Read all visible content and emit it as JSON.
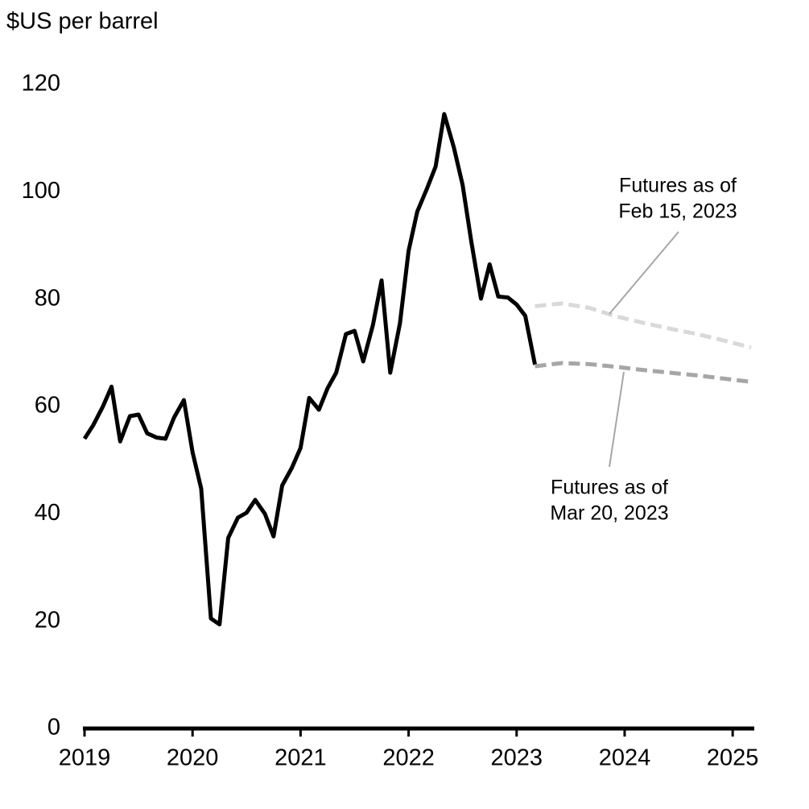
{
  "chart_data": {
    "type": "line",
    "y_axis_label": "$US per barrel",
    "xlim": [
      2019,
      2025.2
    ],
    "xticks": [
      2019,
      2020,
      2021,
      2022,
      2023,
      2024,
      2025
    ],
    "ylim": [
      0,
      120
    ],
    "yticks": [
      0,
      20,
      40,
      60,
      80,
      100,
      120
    ],
    "grid": false,
    "series": [
      {
        "color": "#000000",
        "dashed": false,
        "x": [
          2019.0,
          2019.08,
          2019.17,
          2019.25,
          2019.33,
          2019.42,
          2019.5,
          2019.58,
          2019.67,
          2019.75,
          2019.83,
          2019.92,
          2020.0,
          2020.08,
          2020.17,
          2020.25,
          2020.33,
          2020.42,
          2020.5,
          2020.58,
          2020.67,
          2020.75,
          2020.83,
          2020.92,
          2021.0,
          2021.08,
          2021.17,
          2021.25,
          2021.33,
          2021.42,
          2021.5,
          2021.58,
          2021.67,
          2021.75,
          2021.83,
          2021.92,
          2022.0,
          2022.08,
          2022.17,
          2022.25,
          2022.33,
          2022.42,
          2022.5,
          2022.58,
          2022.67,
          2022.75,
          2022.83,
          2022.92,
          2023.0,
          2023.08,
          2023.17
        ],
        "values": [
          54,
          56.5,
          60,
          63.7,
          53.5,
          58.2,
          58.5,
          55,
          54.2,
          54,
          58,
          61.2,
          51.5,
          44.7,
          20.5,
          19.4,
          35.5,
          39.3,
          40.2,
          42.6,
          40,
          35.8,
          45.3,
          48.6,
          52.3,
          61.6,
          59.4,
          63.4,
          66.3,
          73.5,
          74.1,
          68.4,
          75.2,
          83.5,
          66.3,
          75.5,
          89,
          96.3,
          100.6,
          104.7,
          114.5,
          108.2,
          101.3,
          90.8,
          80.1,
          86.5,
          80.5,
          80.3,
          79,
          76.9,
          67.8
        ]
      },
      {
        "color": "#d9d9d9",
        "dashed": true,
        "x": [
          2023.17,
          2023.42,
          2023.67,
          2023.92,
          2024.17,
          2024.42,
          2024.67,
          2024.92,
          2025.17
        ],
        "values": [
          78.7,
          79.2,
          78.4,
          76.8,
          75.6,
          74.5,
          73.5,
          72.3,
          71
        ]
      },
      {
        "color": "#a6a6a6",
        "dashed": true,
        "x": [
          2023.17,
          2023.42,
          2023.67,
          2023.92,
          2024.17,
          2024.42,
          2024.67,
          2024.92,
          2025.17
        ],
        "values": [
          67.5,
          68.1,
          67.9,
          67.4,
          66.8,
          66.3,
          65.8,
          65.2,
          64.6
        ]
      }
    ],
    "annotations": [
      {
        "lines": [
          "Futures as of",
          "Feb 15, 2023"
        ]
      },
      {
        "lines": [
          "Futures as of",
          "Mar 20, 2023"
        ]
      }
    ]
  }
}
